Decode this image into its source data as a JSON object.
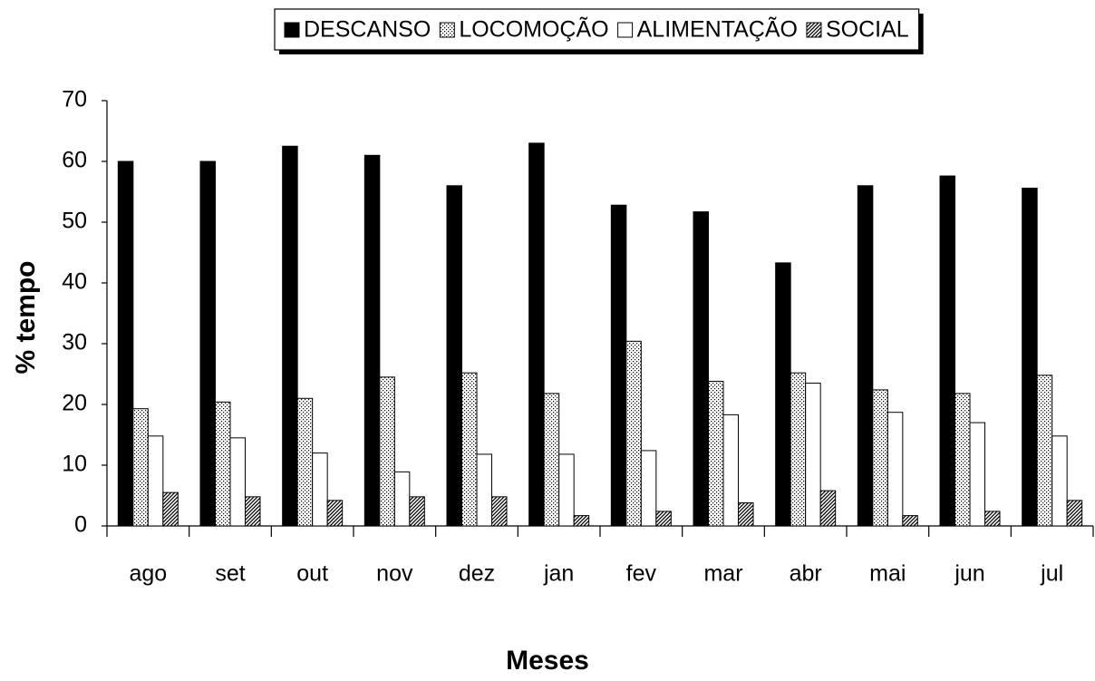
{
  "chart_data": {
    "type": "bar",
    "xlabel": "Meses",
    "ylabel": "% tempo",
    "categories": [
      "ago",
      "set",
      "out",
      "nov",
      "dez",
      "jan",
      "fev",
      "mar",
      "abr",
      "mai",
      "jun",
      "jul"
    ],
    "series": [
      {
        "name": "DESCANSO",
        "color": "#000000",
        "fill": "solid",
        "values": [
          60,
          60,
          62.5,
          61,
          56,
          63,
          52.8,
          51.7,
          43.3,
          56,
          57.6,
          55.6
        ]
      },
      {
        "name": "LOCOMOÇÃO",
        "color": "#000000",
        "fill": "dots",
        "values": [
          19.3,
          20.4,
          21,
          24.5,
          25.2,
          21.8,
          30.4,
          23.8,
          25.2,
          22.4,
          21.8,
          24.8
        ]
      },
      {
        "name": "ALIMENTAÇÃO",
        "color": "#ffffff",
        "fill": "solid",
        "values": [
          14.8,
          14.5,
          12,
          8.9,
          11.8,
          11.8,
          12.4,
          18.3,
          23.5,
          18.7,
          17,
          14.8
        ]
      },
      {
        "name": "SOCIAL",
        "color": "#000000",
        "fill": "hatch",
        "values": [
          5.5,
          4.8,
          4.2,
          4.8,
          4.8,
          1.7,
          2.4,
          3.8,
          5.8,
          1.7,
          2.4,
          4.2
        ]
      }
    ],
    "ylim": [
      0,
      70
    ],
    "yticks": [
      0,
      10,
      20,
      30,
      40,
      50,
      60,
      70
    ],
    "legend": "top"
  }
}
